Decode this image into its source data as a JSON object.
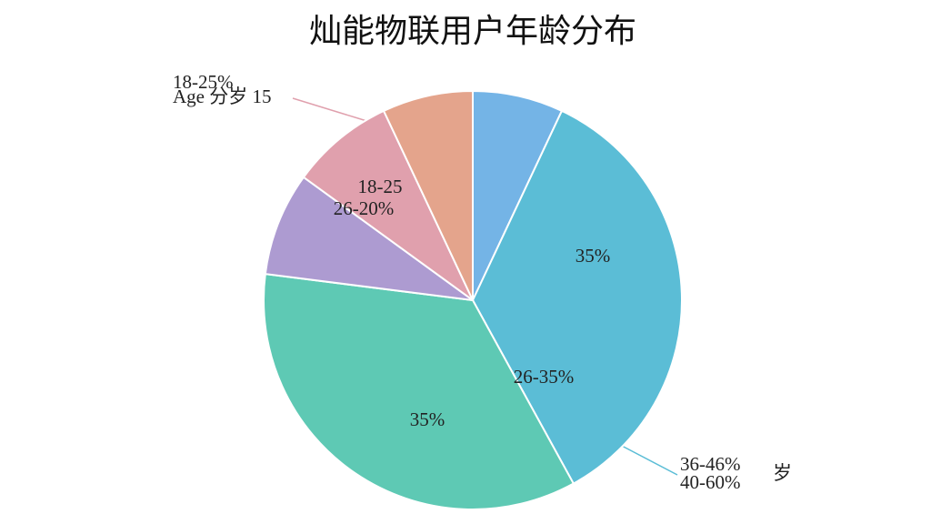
{
  "chart_data": {
    "type": "pie",
    "title": "灿能物联用户年龄分布",
    "values": [
      7,
      35,
      35,
      8,
      8,
      7
    ],
    "colors": [
      "#74b4e6",
      "#5bbdd6",
      "#5ec9b4",
      "#ad9bd1",
      "#e0a0ad",
      "#e4a48c"
    ],
    "annotations": [
      "18-25%",
      "Age 分岁 15",
      "18-25",
      "26-20%",
      "35%",
      "26-35%",
      "35%",
      "36-46%",
      "40-60%",
      "岁"
    ]
  }
}
